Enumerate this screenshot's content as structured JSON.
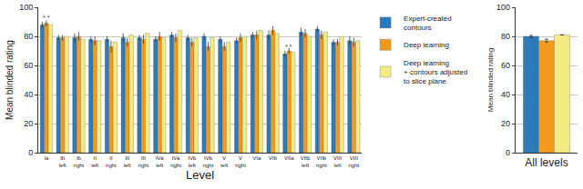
{
  "chart_data": [
    {
      "type": "bar",
      "x_label": "Level",
      "y_label": "Mean blinded rating",
      "categories": [
        "Ia",
        "Ib left",
        "Ib right",
        "II left",
        "II right",
        "III left",
        "III right",
        "IVa left",
        "IVa right",
        "IVb left",
        "IVb right",
        "V left",
        "V right",
        "VIa",
        "VIb",
        "VIIa",
        "VIIb left",
        "VIIb right",
        "VIII left",
        "VIII right"
      ],
      "series": [
        {
          "name": "Expert-created\ncontours",
          "color": "#2b7bba",
          "values": [
            88,
            79,
            79,
            78,
            78,
            79,
            79,
            78,
            81,
            79,
            80,
            78,
            77,
            81,
            81,
            68,
            83,
            85,
            76,
            77
          ],
          "errors": [
            2,
            2,
            3,
            2,
            2,
            3,
            2,
            2,
            2,
            2,
            2,
            2,
            2,
            2,
            3,
            2,
            3,
            2,
            2,
            3
          ]
        },
        {
          "name": "Deep learning",
          "color": "#f39a1e",
          "values": [
            89,
            79,
            80,
            77,
            73,
            76,
            78,
            80,
            79,
            76,
            73,
            73,
            79,
            81,
            84,
            70,
            82,
            81,
            76,
            76
          ],
          "errors": [
            2,
            2,
            3,
            3,
            4,
            3,
            3,
            3,
            3,
            3,
            3,
            3,
            3,
            3,
            3,
            2,
            3,
            3,
            2,
            3
          ]
        },
        {
          "name": "Deep learning\n+ contours adjusted\nto slice plane",
          "color": "#f4ec82",
          "values": [
            88,
            80,
            78,
            77,
            76,
            81,
            82,
            79,
            84,
            79,
            79,
            76,
            80,
            84,
            82,
            69,
            80,
            83,
            80,
            77
          ],
          "errors": [
            0,
            0,
            0,
            0,
            0,
            0,
            0,
            0,
            0,
            0,
            0,
            0,
            0,
            0,
            0,
            0,
            0,
            0,
            0,
            0
          ]
        }
      ],
      "annotations": [
        {
          "category": "Ia",
          "text": "* *",
          "y": 93
        },
        {
          "category": "VIIa",
          "text": "* *",
          "y": 73
        }
      ],
      "ylim": [
        0,
        100
      ],
      "yticks": [
        0,
        20,
        40,
        60,
        80,
        100
      ],
      "grid": true,
      "legend": "right"
    },
    {
      "type": "bar",
      "y_label": "Mean blinded rating",
      "categories": [
        "All levels"
      ],
      "series": [
        {
          "name": "Expert-created\ncontours",
          "color": "#2b7bba",
          "values": [
            80
          ],
          "errors": [
            0.7
          ]
        },
        {
          "name": "Deep learning",
          "color": "#f39a1e",
          "values": [
            77
          ],
          "errors": [
            1
          ]
        },
        {
          "name": "Deep learning\n+ contours adjusted\nto slice plane",
          "color": "#f4ec82",
          "values": [
            81
          ],
          "errors": [
            0
          ]
        }
      ],
      "ylim": [
        0,
        100
      ],
      "yticks": [
        0,
        20,
        40,
        60,
        80,
        100
      ],
      "grid": true
    }
  ]
}
